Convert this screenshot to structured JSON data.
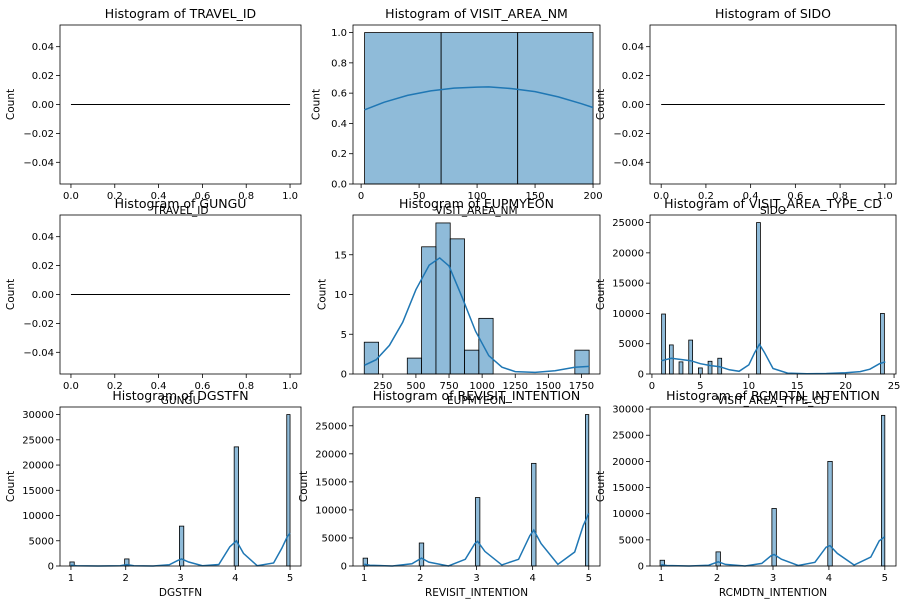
{
  "chart_data": [
    {
      "type": "histogram",
      "title": "Histogram of TRAVEL_ID",
      "xlabel": "TRAVEL_ID",
      "ylabel": "Count",
      "xlim": [
        -0.05,
        1.05
      ],
      "ylim": [
        -0.055,
        0.055
      ],
      "xticks": [
        0.0,
        0.2,
        0.4,
        0.6,
        0.8,
        1.0
      ],
      "xtick_labels": [
        "0.0",
        "0.2",
        "0.4",
        "0.6",
        "0.8",
        "1.0"
      ],
      "yticks": [
        -0.04,
        -0.02,
        0.0,
        0.02,
        0.04
      ],
      "ytick_labels": [
        "−0.04",
        "−0.02",
        "0.00",
        "0.02",
        "0.04"
      ],
      "bins": [],
      "flat_line": {
        "x": [
          0,
          1
        ],
        "y": 0
      },
      "kde": []
    },
    {
      "type": "histogram",
      "title": "Histogram of VISIT_AREA_NM",
      "xlabel": "VISIT_AREA_NM",
      "ylabel": "Count",
      "xlim": [
        -7,
        206
      ],
      "ylim": [
        0,
        1.05
      ],
      "xticks": [
        0,
        50,
        100,
        150,
        200
      ],
      "xtick_labels": [
        "0",
        "50",
        "100",
        "150",
        "200"
      ],
      "yticks": [
        0,
        0.2,
        0.4,
        0.6,
        0.8,
        1.0
      ],
      "ytick_labels": [
        "0.0",
        "0.2",
        "0.4",
        "0.6",
        "0.8",
        "1.0"
      ],
      "bins": [
        {
          "x0": 3,
          "x1": 69,
          "count": 1
        },
        {
          "x0": 69,
          "x1": 135,
          "count": 1
        },
        {
          "x0": 135,
          "x1": 200,
          "count": 1
        }
      ],
      "kde": [
        [
          3,
          0.49
        ],
        [
          20,
          0.54
        ],
        [
          40,
          0.585
        ],
        [
          60,
          0.615
        ],
        [
          80,
          0.633
        ],
        [
          100,
          0.64
        ],
        [
          110,
          0.641
        ],
        [
          130,
          0.63
        ],
        [
          150,
          0.61
        ],
        [
          170,
          0.575
        ],
        [
          190,
          0.53
        ],
        [
          200,
          0.505
        ]
      ]
    },
    {
      "type": "histogram",
      "title": "Histogram of SIDO",
      "xlabel": "SIDO",
      "ylabel": "Count",
      "xlim": [
        -0.05,
        1.05
      ],
      "ylim": [
        -0.055,
        0.055
      ],
      "xticks": [
        0.0,
        0.2,
        0.4,
        0.6,
        0.8,
        1.0
      ],
      "xtick_labels": [
        "0.0",
        "0.2",
        "0.4",
        "0.6",
        "0.8",
        "1.0"
      ],
      "yticks": [
        -0.04,
        -0.02,
        0.0,
        0.02,
        0.04
      ],
      "ytick_labels": [
        "−0.04",
        "−0.02",
        "0.00",
        "0.02",
        "0.04"
      ],
      "bins": [],
      "flat_line": {
        "x": [
          0,
          1
        ],
        "y": 0
      },
      "kde": []
    },
    {
      "type": "histogram",
      "title": "Histogram of GUNGU",
      "xlabel": "GUNGU",
      "ylabel": "Count",
      "xlim": [
        -0.05,
        1.05
      ],
      "ylim": [
        -0.055,
        0.055
      ],
      "xticks": [
        0.0,
        0.2,
        0.4,
        0.6,
        0.8,
        1.0
      ],
      "xtick_labels": [
        "0.0",
        "0.2",
        "0.4",
        "0.6",
        "0.8",
        "1.0"
      ],
      "yticks": [
        -0.04,
        -0.02,
        0.0,
        0.02,
        0.04
      ],
      "ytick_labels": [
        "−0.04",
        "−0.02",
        "0.00",
        "0.02",
        "0.04"
      ],
      "bins": [],
      "flat_line": {
        "x": [
          0,
          1
        ],
        "y": 0
      },
      "kde": []
    },
    {
      "type": "histogram",
      "title": "Histogram of EUPMYEON",
      "xlabel": "EUPMYEON",
      "ylabel": "Count",
      "xlim": [
        25,
        1890
      ],
      "ylim": [
        0,
        20
      ],
      "xticks": [
        250,
        500,
        750,
        1000,
        1250,
        1500,
        1750
      ],
      "xtick_labels": [
        "250",
        "500",
        "750",
        "1000",
        "1250",
        "1500",
        "1750"
      ],
      "yticks": [
        0,
        5,
        10,
        15
      ],
      "ytick_labels": [
        "0",
        "5",
        "10",
        "15"
      ],
      "bins": [
        {
          "x0": 110,
          "x1": 218,
          "count": 4
        },
        {
          "x0": 435,
          "x1": 543,
          "count": 2
        },
        {
          "x0": 543,
          "x1": 651,
          "count": 16
        },
        {
          "x0": 651,
          "x1": 759,
          "count": 19
        },
        {
          "x0": 759,
          "x1": 867,
          "count": 17
        },
        {
          "x0": 867,
          "x1": 975,
          "count": 3
        },
        {
          "x0": 975,
          "x1": 1083,
          "count": 7
        },
        {
          "x0": 1700,
          "x1": 1808,
          "count": 3
        }
      ],
      "kde": [
        [
          110,
          1.1
        ],
        [
          200,
          1.8
        ],
        [
          300,
          3.6
        ],
        [
          400,
          6.5
        ],
        [
          500,
          10.6
        ],
        [
          600,
          13.7
        ],
        [
          680,
          14.6
        ],
        [
          750,
          13.6
        ],
        [
          850,
          9.6
        ],
        [
          950,
          5.4
        ],
        [
          1050,
          2.3
        ],
        [
          1150,
          0.85
        ],
        [
          1250,
          0.3
        ],
        [
          1400,
          0.2
        ],
        [
          1550,
          0.4
        ],
        [
          1700,
          0.85
        ],
        [
          1808,
          0.95
        ]
      ]
    },
    {
      "type": "histogram",
      "title": "Histogram of VISIT_AREA_TYPE_CD",
      "xlabel": "VISIT_AREA_TYPE_CD",
      "ylabel": "Count",
      "xlim": [
        -0.2,
        25.2
      ],
      "ylim": [
        0,
        26250
      ],
      "xticks": [
        0,
        5,
        10,
        15,
        20,
        25
      ],
      "xtick_labels": [
        "0",
        "5",
        "10",
        "15",
        "20",
        "25"
      ],
      "yticks": [
        0,
        5000,
        10000,
        15000,
        20000,
        25000
      ],
      "ytick_labels": [
        "0",
        "5000",
        "10000",
        "15000",
        "20000",
        "25000"
      ],
      "bins": [
        {
          "x0": 1.0,
          "x1": 1.4,
          "count": 9900
        },
        {
          "x0": 1.8,
          "x1": 2.2,
          "count": 4800
        },
        {
          "x0": 2.8,
          "x1": 3.2,
          "count": 2000
        },
        {
          "x0": 3.8,
          "x1": 4.2,
          "count": 5600
        },
        {
          "x0": 4.8,
          "x1": 5.2,
          "count": 1000
        },
        {
          "x0": 5.8,
          "x1": 6.2,
          "count": 2100
        },
        {
          "x0": 6.8,
          "x1": 7.2,
          "count": 2600
        },
        {
          "x0": 10.8,
          "x1": 11.2,
          "count": 25000
        },
        {
          "x0": 23.6,
          "x1": 24.0,
          "count": 10000
        }
      ],
      "kde": [
        [
          1,
          2200
        ],
        [
          2,
          2600
        ],
        [
          3,
          2400
        ],
        [
          4,
          2200
        ],
        [
          5,
          1700
        ],
        [
          6,
          1400
        ],
        [
          7,
          1200
        ],
        [
          8,
          700
        ],
        [
          9,
          450
        ],
        [
          10,
          1500
        ],
        [
          10.6,
          3500
        ],
        [
          11.1,
          4900
        ],
        [
          11.6,
          3600
        ],
        [
          12.5,
          900
        ],
        [
          14,
          150
        ],
        [
          16,
          50
        ],
        [
          18,
          80
        ],
        [
          20,
          200
        ],
        [
          21.5,
          400
        ],
        [
          22.5,
          800
        ],
        [
          23.5,
          1700
        ],
        [
          24.1,
          2000
        ]
      ]
    },
    {
      "type": "histogram",
      "title": "Histogram of DGSTFN",
      "xlabel": "DGSTFN",
      "ylabel": "Count",
      "xlim": [
        0.8,
        5.2
      ],
      "ylim": [
        0,
        31500
      ],
      "xticks": [
        1,
        2,
        3,
        4,
        5
      ],
      "xtick_labels": [
        "1",
        "2",
        "3",
        "4",
        "5"
      ],
      "yticks": [
        0,
        5000,
        10000,
        15000,
        20000,
        25000,
        30000
      ],
      "ytick_labels": [
        "0",
        "5000",
        "10000",
        "15000",
        "20000",
        "25000",
        "30000"
      ],
      "bins": [
        {
          "x0": 0.98,
          "x1": 1.06,
          "count": 800
        },
        {
          "x0": 1.98,
          "x1": 2.06,
          "count": 1400
        },
        {
          "x0": 2.98,
          "x1": 3.06,
          "count": 7900
        },
        {
          "x0": 3.98,
          "x1": 4.06,
          "count": 23600
        },
        {
          "x0": 4.94,
          "x1": 5.0,
          "count": 30000
        }
      ],
      "kde": [
        [
          1,
          150
        ],
        [
          1.1,
          60
        ],
        [
          1.5,
          0
        ],
        [
          1.9,
          60
        ],
        [
          2.02,
          270
        ],
        [
          2.15,
          60
        ],
        [
          2.5,
          0
        ],
        [
          2.8,
          250
        ],
        [
          2.95,
          1100
        ],
        [
          3.02,
          1400
        ],
        [
          3.15,
          800
        ],
        [
          3.4,
          50
        ],
        [
          3.7,
          300
        ],
        [
          3.9,
          3800
        ],
        [
          4.02,
          5000
        ],
        [
          4.15,
          2500
        ],
        [
          4.4,
          50
        ],
        [
          4.7,
          600
        ],
        [
          4.85,
          3500
        ],
        [
          4.95,
          5800
        ],
        [
          5,
          6500
        ]
      ]
    },
    {
      "type": "histogram",
      "title": "Histogram of REVISIT_INTENTION",
      "xlabel": "REVISIT_INTENTION",
      "ylabel": "Count",
      "xlim": [
        0.8,
        5.2
      ],
      "ylim": [
        0,
        28350
      ],
      "xticks": [
        1,
        2,
        3,
        4,
        5
      ],
      "xtick_labels": [
        "1",
        "2",
        "3",
        "4",
        "5"
      ],
      "yticks": [
        0,
        5000,
        10000,
        15000,
        20000,
        25000
      ],
      "ytick_labels": [
        "0",
        "5000",
        "10000",
        "15000",
        "20000",
        "25000"
      ],
      "bins": [
        {
          "x0": 0.98,
          "x1": 1.06,
          "count": 1400
        },
        {
          "x0": 1.98,
          "x1": 2.06,
          "count": 4100
        },
        {
          "x0": 2.98,
          "x1": 3.06,
          "count": 12200
        },
        {
          "x0": 3.98,
          "x1": 4.06,
          "count": 18300
        },
        {
          "x0": 4.94,
          "x1": 5.0,
          "count": 27000
        }
      ],
      "kde": [
        [
          1,
          300
        ],
        [
          1.1,
          150
        ],
        [
          1.5,
          0
        ],
        [
          1.85,
          400
        ],
        [
          2.02,
          1400
        ],
        [
          2.15,
          700
        ],
        [
          2.5,
          0
        ],
        [
          2.8,
          1200
        ],
        [
          2.97,
          4000
        ],
        [
          3.02,
          4400
        ],
        [
          3.15,
          2600
        ],
        [
          3.45,
          200
        ],
        [
          3.75,
          1200
        ],
        [
          3.95,
          5400
        ],
        [
          4.02,
          6400
        ],
        [
          4.15,
          4000
        ],
        [
          4.45,
          300
        ],
        [
          4.75,
          2500
        ],
        [
          4.9,
          7200
        ],
        [
          5,
          9400
        ]
      ]
    },
    {
      "type": "histogram",
      "title": "Histogram of RCMDTN_INTENTION",
      "xlabel": "RCMDTN_INTENTION",
      "ylabel": "Count",
      "xlim": [
        0.8,
        5.2
      ],
      "ylim": [
        0,
        30400
      ],
      "xticks": [
        1,
        2,
        3,
        4,
        5
      ],
      "xtick_labels": [
        "1",
        "2",
        "3",
        "4",
        "5"
      ],
      "yticks": [
        0,
        5000,
        10000,
        15000,
        20000,
        25000,
        30000
      ],
      "ytick_labels": [
        "0",
        "5000",
        "10000",
        "15000",
        "20000",
        "25000",
        "30000"
      ],
      "bins": [
        {
          "x0": 0.98,
          "x1": 1.06,
          "count": 1100
        },
        {
          "x0": 1.98,
          "x1": 2.06,
          "count": 2700
        },
        {
          "x0": 2.98,
          "x1": 3.06,
          "count": 11000
        },
        {
          "x0": 3.98,
          "x1": 4.06,
          "count": 20000
        },
        {
          "x0": 4.94,
          "x1": 5.0,
          "count": 28800
        }
      ],
      "kde": [
        [
          1,
          250
        ],
        [
          1.1,
          100
        ],
        [
          1.5,
          0
        ],
        [
          1.85,
          150
        ],
        [
          2.02,
          800
        ],
        [
          2.15,
          300
        ],
        [
          2.5,
          0
        ],
        [
          2.8,
          500
        ],
        [
          2.97,
          2000
        ],
        [
          3.02,
          2200
        ],
        [
          3.15,
          1300
        ],
        [
          3.45,
          100
        ],
        [
          3.75,
          700
        ],
        [
          3.95,
          3600
        ],
        [
          4.02,
          3900
        ],
        [
          4.15,
          2400
        ],
        [
          4.45,
          200
        ],
        [
          4.75,
          1700
        ],
        [
          4.9,
          4800
        ],
        [
          5,
          5600
        ]
      ]
    }
  ]
}
